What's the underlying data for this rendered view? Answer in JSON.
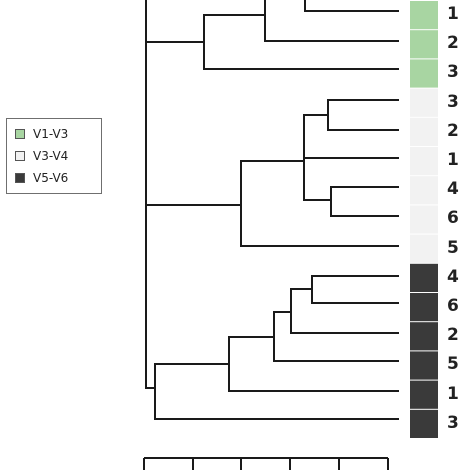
{
  "legend": {
    "items": [
      {
        "label": "V1-V3",
        "color": "#a8d5a2"
      },
      {
        "label": "V3-V4",
        "color": "#f2f2f2"
      },
      {
        "label": "V5-V6",
        "color": "#3a3a3a"
      }
    ]
  },
  "leaves": [
    {
      "label": "1",
      "group": "V1-V3"
    },
    {
      "label": "2",
      "group": "V1-V3"
    },
    {
      "label": "3",
      "group": "V1-V3"
    },
    {
      "label": "3",
      "group": "V3-V4"
    },
    {
      "label": "2",
      "group": "V3-V4"
    },
    {
      "label": "1",
      "group": "V3-V4"
    },
    {
      "label": "4",
      "group": "V3-V4"
    },
    {
      "label": "6",
      "group": "V3-V4"
    },
    {
      "label": "5",
      "group": "V3-V4"
    },
    {
      "label": "4",
      "group": "V5-V6"
    },
    {
      "label": "6",
      "group": "V5-V6"
    },
    {
      "label": "2",
      "group": "V5-V6"
    },
    {
      "label": "5",
      "group": "V5-V6"
    },
    {
      "label": "1",
      "group": "V5-V6"
    },
    {
      "label": "3",
      "group": "V5-V6"
    }
  ],
  "colors": {
    "tree_line": "#1a1a1a",
    "legend_border": "#6f6f6f"
  }
}
